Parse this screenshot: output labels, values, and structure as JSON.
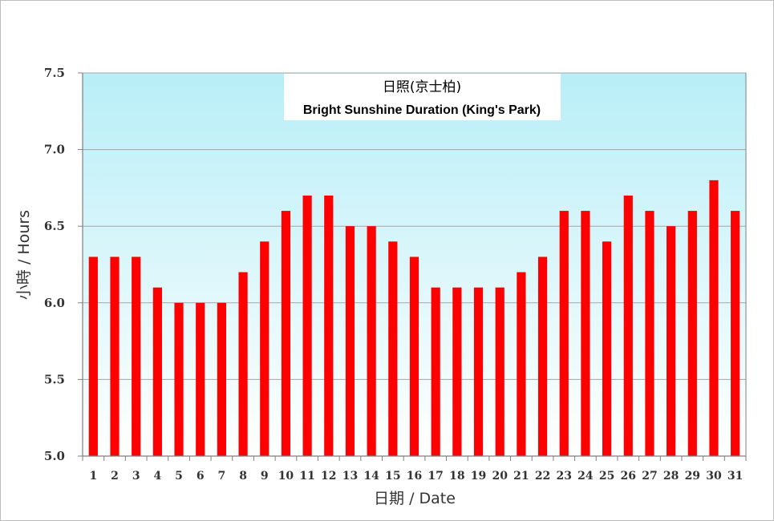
{
  "chart_data": {
    "type": "bar",
    "title": "日照(京士柏)",
    "subtitle": "Bright Sunshine Duration (King's Park)",
    "xlabel": "日期 / Date",
    "ylabel": "小時 / Hours",
    "ylim": [
      5.0,
      7.5
    ],
    "yticks": [
      "5.0",
      "5.5",
      "6.0",
      "6.5",
      "7.0",
      "7.5"
    ],
    "categories": [
      "1",
      "2",
      "3",
      "4",
      "5",
      "6",
      "7",
      "8",
      "9",
      "10",
      "11",
      "12",
      "13",
      "14",
      "15",
      "16",
      "17",
      "18",
      "19",
      "20",
      "21",
      "22",
      "23",
      "24",
      "25",
      "26",
      "27",
      "28",
      "29",
      "30",
      "31"
    ],
    "values": [
      6.3,
      6.3,
      6.3,
      6.1,
      6.0,
      6.0,
      6.0,
      6.2,
      6.4,
      6.6,
      6.7,
      6.7,
      6.5,
      6.5,
      6.4,
      6.3,
      6.1,
      6.1,
      6.1,
      6.1,
      6.2,
      6.3,
      6.6,
      6.6,
      6.4,
      6.7,
      6.6,
      6.5,
      6.6,
      6.8,
      6.6
    ],
    "grid": true,
    "legend": "none",
    "colors": {
      "bar": "#ff0000",
      "plot_top": "#b8eef7",
      "plot_bottom": "#ffffff",
      "grid": "#a6a6a6",
      "axis": "#7f7f7f"
    }
  }
}
